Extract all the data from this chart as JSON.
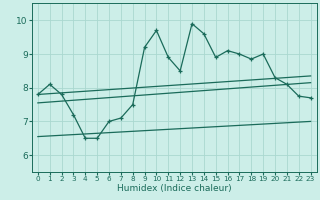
{
  "title": "",
  "xlabel": "Humidex (Indice chaleur)",
  "xlim": [
    -0.5,
    23.5
  ],
  "ylim": [
    5.5,
    10.5
  ],
  "yticks": [
    6,
    7,
    8,
    9,
    10
  ],
  "xticks": [
    0,
    1,
    2,
    3,
    4,
    5,
    6,
    7,
    8,
    9,
    10,
    11,
    12,
    13,
    14,
    15,
    16,
    17,
    18,
    19,
    20,
    21,
    22,
    23
  ],
  "bg_color": "#cceee8",
  "line_color": "#1a6b5a",
  "grid_color": "#aad8d0",
  "series1": [
    7.8,
    8.1,
    7.8,
    7.2,
    6.5,
    6.5,
    7.0,
    7.1,
    7.5,
    9.2,
    9.7,
    8.9,
    8.5,
    9.9,
    9.6,
    8.9,
    9.1,
    9.0,
    8.85,
    9.0,
    8.3,
    8.1,
    7.75,
    7.7
  ],
  "line1_start_x": 0,
  "line1_start_y": 7.8,
  "line1_end_x": 23,
  "line1_end_y": 8.35,
  "line2_start_x": 0,
  "line2_start_y": 7.55,
  "line2_end_x": 23,
  "line2_end_y": 8.15,
  "line3_start_x": 0,
  "line3_start_y": 6.55,
  "line3_end_x": 23,
  "line3_end_y": 7.0
}
